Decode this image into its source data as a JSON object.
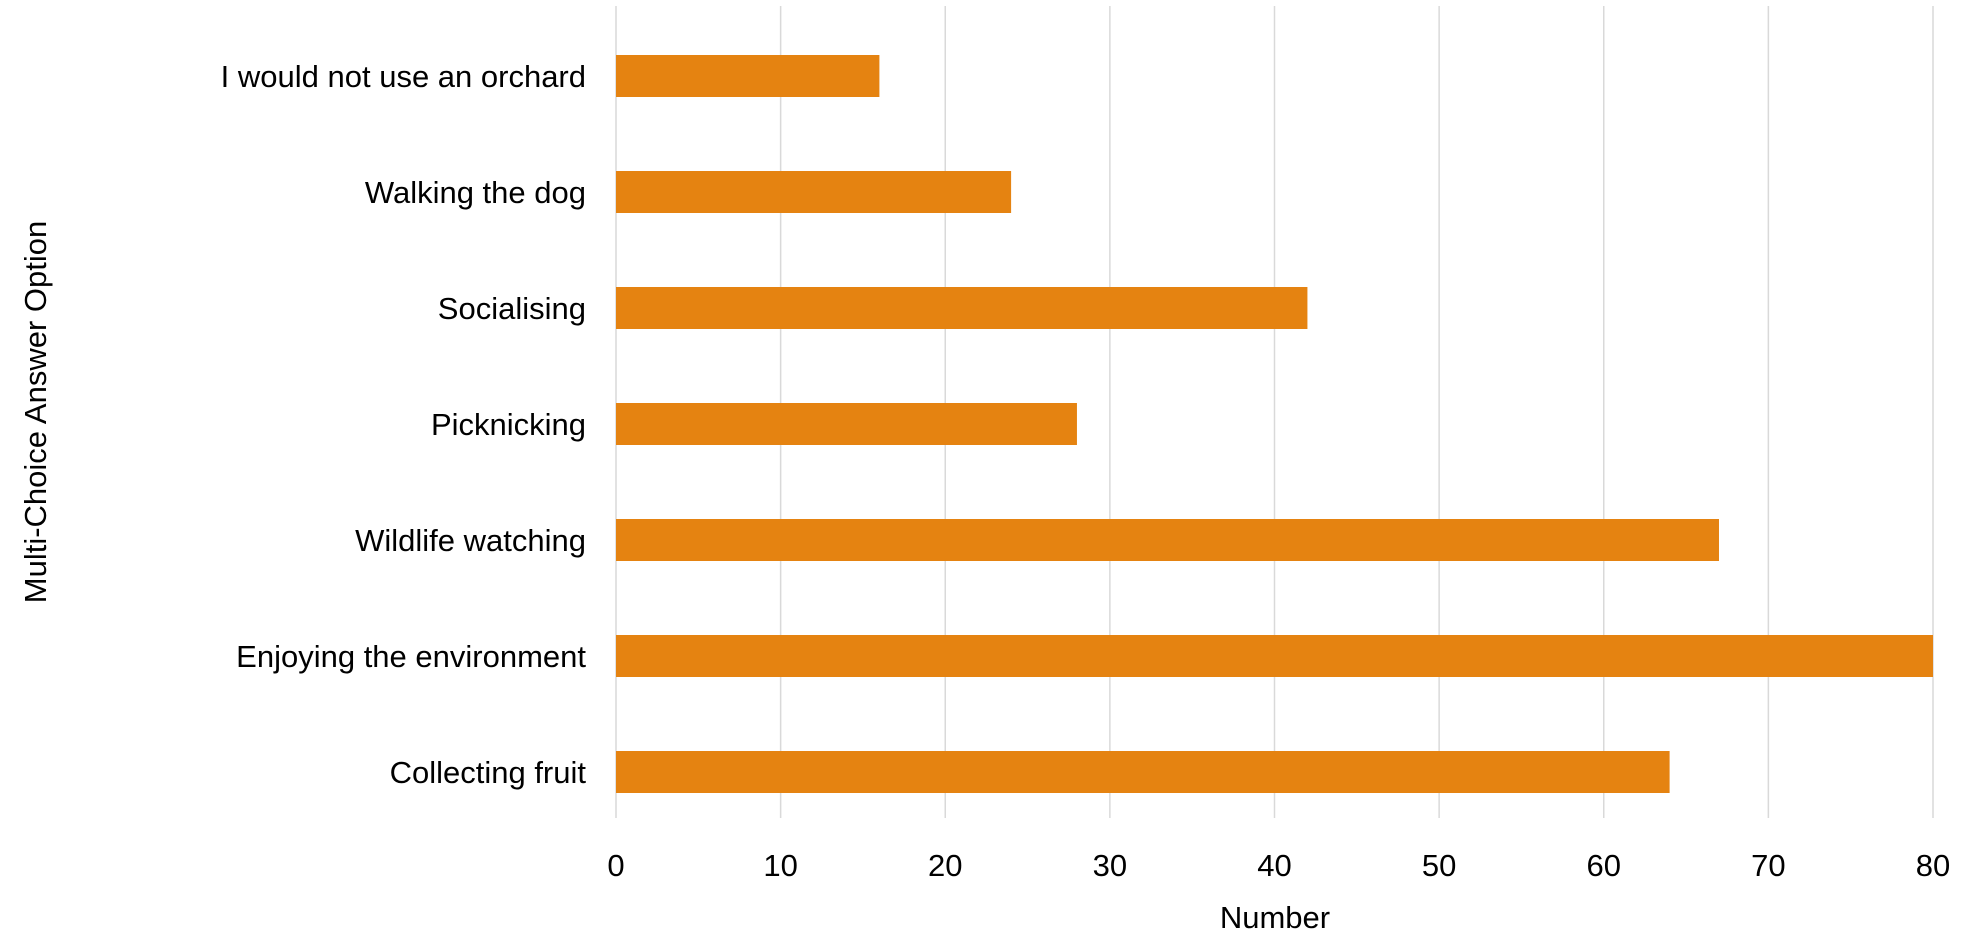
{
  "chart_data": {
    "type": "bar",
    "orientation": "horizontal",
    "categories": [
      "I would not use an orchard",
      "Walking the dog",
      "Socialising",
      "Picknicking",
      "Wildlife watching",
      "Enjoying the environment",
      "Collecting fruit"
    ],
    "values": [
      16,
      24,
      42,
      28,
      67,
      80,
      64
    ],
    "xlabel": "Number",
    "ylabel": "Multi-Choice Answer Option",
    "xlim": [
      0,
      80
    ],
    "xticks": [
      "0",
      "10",
      "20",
      "30",
      "40",
      "50",
      "60",
      "70",
      "80"
    ],
    "grid": "vertical",
    "legend": "none",
    "colors": {
      "bar": "#E58311",
      "grid": "#D9D9D9",
      "text": "#000000"
    }
  }
}
